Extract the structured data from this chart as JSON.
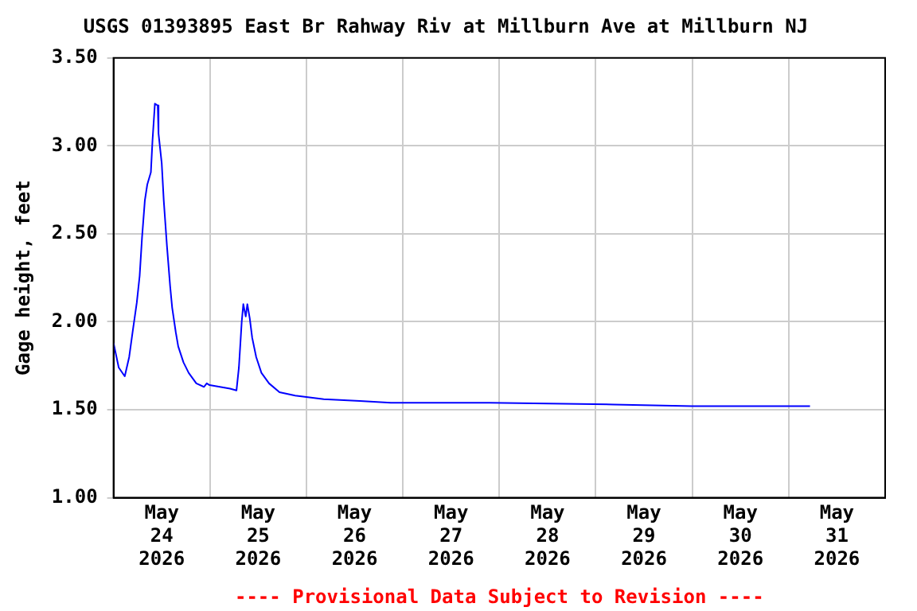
{
  "chart_data": {
    "type": "line",
    "title": "USGS 01393895 East Br Rahway Riv at Millburn Ave at Millburn NJ",
    "ylabel": "Gage height, feet",
    "annotations": [
      "---- Provisional Data Subject to Revision ----"
    ],
    "x": [
      "2026-05-24T00:00",
      "2026-05-24T01:18",
      "2026-05-24T02:48",
      "2026-05-24T03:54",
      "2026-05-24T04:48",
      "2026-05-24T05:48",
      "2026-05-24T06:30",
      "2026-05-24T07:06",
      "2026-05-24T07:48",
      "2026-05-24T08:24",
      "2026-05-24T09:18",
      "2026-05-24T09:42",
      "2026-05-24T10:18",
      "2026-05-24T11:00",
      "2026-05-24T11:12",
      "2026-05-24T12:00",
      "2026-05-24T12:30",
      "2026-05-24T13:18",
      "2026-05-24T14:06",
      "2026-05-24T14:36",
      "2026-05-24T15:30",
      "2026-05-24T16:06",
      "2026-05-24T17:24",
      "2026-05-24T18:42",
      "2026-05-24T20:36",
      "2026-05-24T22:30",
      "2026-05-24T23:12",
      "2026-05-24T23:54",
      "2026-05-25T05:00",
      "2026-05-25T06:36",
      "2026-05-25T07:12",
      "2026-05-25T07:54",
      "2026-05-25T08:18",
      "2026-05-25T08:54",
      "2026-05-25T09:18",
      "2026-05-25T09:54",
      "2026-05-25T10:30",
      "2026-05-25T11:30",
      "2026-05-25T12:48",
      "2026-05-25T14:42",
      "2026-05-25T17:18",
      "2026-05-25T21:12",
      "2026-05-26T04:18",
      "2026-05-26T13:18",
      "2026-05-26T21:00",
      "2026-05-27T21:36",
      "2026-05-29T04:30",
      "2026-05-29T23:54",
      "2026-05-31T05:18"
    ],
    "series": [
      {
        "color": "#0000ff",
        "values": [
          1.88,
          1.74,
          1.69,
          1.8,
          1.95,
          2.11,
          2.26,
          2.48,
          2.69,
          2.78,
          2.85,
          3.03,
          3.24,
          3.23,
          3.07,
          2.9,
          2.69,
          2.43,
          2.2,
          2.08,
          1.94,
          1.86,
          1.77,
          1.71,
          1.65,
          1.63,
          1.65,
          1.64,
          1.62,
          1.61,
          1.74,
          2.0,
          2.1,
          2.03,
          2.1,
          2.02,
          1.91,
          1.8,
          1.71,
          1.65,
          1.6,
          1.58,
          1.56,
          1.55,
          1.54,
          1.54,
          1.53,
          1.52,
          1.52
        ]
      }
    ],
    "xlim": [
      "2026-05-24T00:00",
      "2026-06-01T00:00"
    ],
    "xticks": [
      {
        "value": "2026-05-24T12:00",
        "label": "May 24 2026"
      },
      {
        "value": "2026-05-25T00:00",
        "label": null
      },
      {
        "value": "2026-05-25T12:00",
        "label": "May 25 2026"
      },
      {
        "value": "2026-05-26T00:00",
        "label": null
      },
      {
        "value": "2026-05-26T12:00",
        "label": "May 26 2026"
      },
      {
        "value": "2026-05-27T00:00",
        "label": null
      },
      {
        "value": "2026-05-27T12:00",
        "label": "May 27 2026"
      },
      {
        "value": "2026-05-28T00:00",
        "label": null
      },
      {
        "value": "2026-05-28T12:00",
        "label": "May 28 2026"
      },
      {
        "value": "2026-05-29T00:00",
        "label": null
      },
      {
        "value": "2026-05-29T12:00",
        "label": "May 29 2026"
      },
      {
        "value": "2026-05-30T00:00",
        "label": null
      },
      {
        "value": "2026-05-30T12:00",
        "label": "May 30 2026"
      },
      {
        "value": "2026-05-31T00:00",
        "label": null
      },
      {
        "value": "2026-05-31T12:00",
        "label": "May 31 2026"
      }
    ],
    "ylim": [
      1,
      3.5
    ],
    "yticks": [
      {
        "value": 1,
        "label": "1.00"
      },
      {
        "value": 1.5,
        "label": "1.50"
      },
      {
        "value": 2,
        "label": "2.00"
      },
      {
        "value": 2.5,
        "label": "2.50"
      },
      {
        "value": 3,
        "label": "3.00"
      },
      {
        "value": 3.5,
        "label": "3.50"
      }
    ],
    "grid": true
  }
}
